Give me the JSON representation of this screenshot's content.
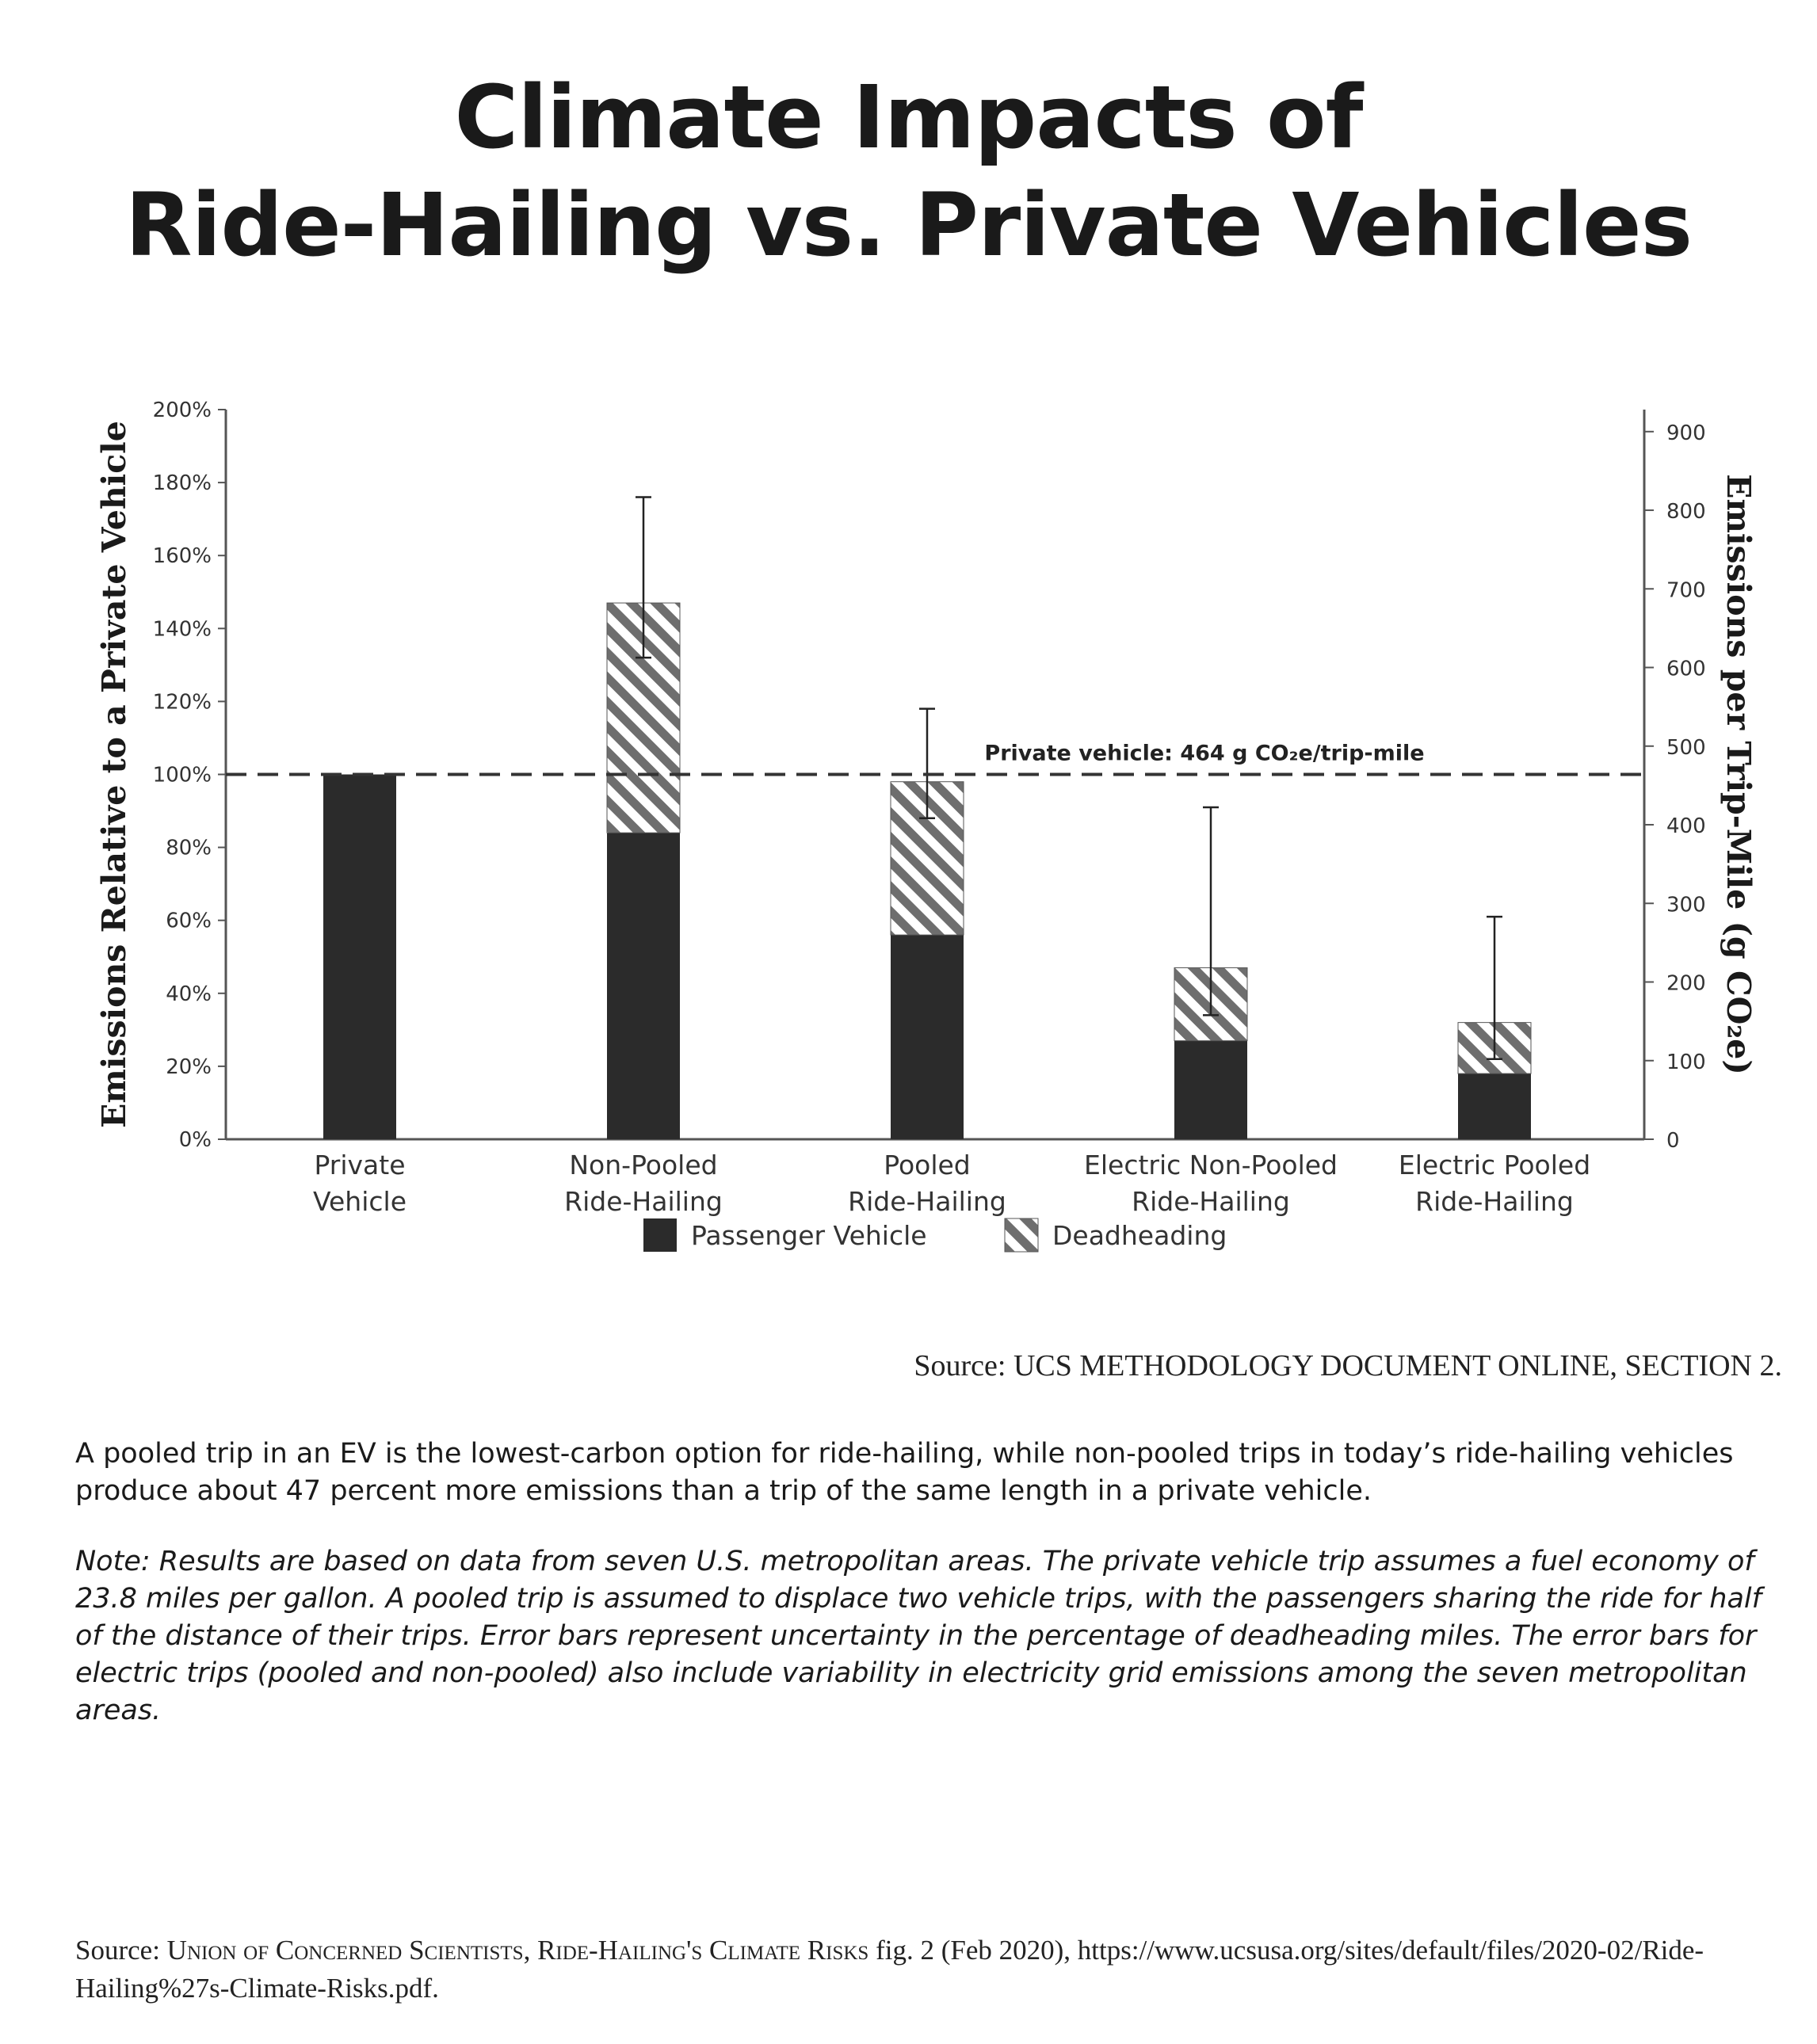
{
  "title_line1": "Climate Impacts of",
  "title_line2": "Ride-Hailing vs. Private Vehicles",
  "chart_data": {
    "type": "bar",
    "stacked": true,
    "categories": [
      [
        "Private",
        "Vehicle"
      ],
      [
        "Non-Pooled",
        "Ride-Hailing"
      ],
      [
        "Pooled",
        "Ride-Hailing"
      ],
      [
        "Electric Non-Pooled",
        "Ride-Hailing"
      ],
      [
        "Electric Pooled",
        "Ride-Hailing"
      ]
    ],
    "series": [
      {
        "name": "Passenger Vehicle",
        "values": [
          100,
          84,
          56,
          27,
          18
        ],
        "color": "#2b2b2b",
        "pattern": "solid"
      },
      {
        "name": "Deadheading",
        "values": [
          0,
          63,
          42,
          20,
          14
        ],
        "color": "#777777",
        "pattern": "diagonal-hatch"
      }
    ],
    "error_bars": [
      null,
      [
        132,
        176
      ],
      [
        88,
        118
      ],
      [
        34,
        91
      ],
      [
        22,
        61
      ]
    ],
    "ylabel": "Emissions Relative to a Private Vehicle",
    "ylim": [
      0,
      200
    ],
    "yticks": [
      0,
      20,
      40,
      60,
      80,
      100,
      120,
      140,
      160,
      180,
      200
    ],
    "ytick_labels": [
      "0%",
      "20%",
      "40%",
      "60%",
      "80%",
      "100%",
      "120%",
      "140%",
      "160%",
      "180%",
      "200%"
    ],
    "y2label": "Emissions per Trip-Mile (g CO₂e)",
    "y2lim": [
      0,
      928
    ],
    "y2ticks": [
      0,
      100,
      200,
      300,
      400,
      500,
      600,
      700,
      800,
      900
    ],
    "reference_line": {
      "value": 100,
      "label": "Private vehicle: 464 g CO₂e/trip-mile",
      "style": "dashed"
    },
    "legend_position": "bottom-center",
    "grid": false
  },
  "source_chart_prefix": "Source: ",
  "source_chart_text": "UCS Methodology Document Online, Section 2.",
  "description": "A pooled trip in an EV is the lowest-carbon option for ride-hailing, while non-pooled trips in today’s ride-hailing vehicles produce about 47 percent more emissions than a trip of the same length in a private vehicle.",
  "note": "Note: Results are based on data from seven U.S. metropolitan areas. The private vehicle trip assumes a fuel economy of 23.8 miles per gallon. A pooled trip is assumed to displace two vehicle trips, with the passengers sharing the ride for half of the distance of their trips. Error bars represent uncertainty in the percentage of deadheading miles. The error bars for electric trips (pooled and non-pooled) also include variability in electricity grid emissions among the seven metropolitan areas.",
  "source_footer": {
    "prefix": "Source: ",
    "org": "Union of Concerned Scientists",
    "sep1": ", ",
    "report": "Ride-Hailing's Climate Risks",
    "rest": " fig. 2 (Feb 2020), https://www.ucsusa.org/sites/default/files/2020-02/Ride-Hailing%27s-Climate-Risks.pdf."
  }
}
